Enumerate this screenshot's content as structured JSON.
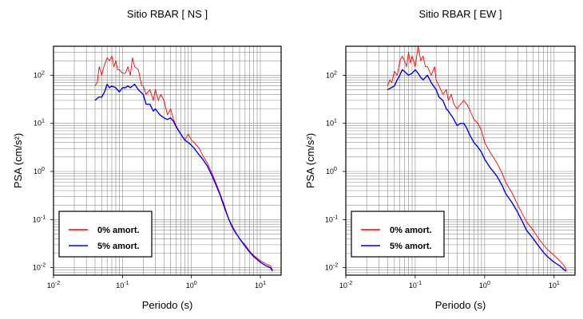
{
  "chart_data": [
    {
      "type": "line",
      "title": "Sitio RBAR [ NS ]",
      "xlabel": "Periodo (s)",
      "ylabel": "PSA (cm/s²)",
      "x_scale": "log",
      "y_scale": "log",
      "xlim": [
        0.01,
        20
      ],
      "ylim": [
        0.007,
        400
      ],
      "grid": true,
      "x_ticks": [
        {
          "value": 0.01,
          "base": "10",
          "exp": "-2"
        },
        {
          "value": 0.1,
          "base": "10",
          "exp": "-1"
        },
        {
          "value": 1,
          "base": "10",
          "exp": "0"
        },
        {
          "value": 10,
          "base": "10",
          "exp": "1"
        }
      ],
      "y_ticks": [
        {
          "value": 0.01,
          "base": "10",
          "exp": "-2"
        },
        {
          "value": 0.1,
          "base": "10",
          "exp": "-1"
        },
        {
          "value": 1,
          "base": "10",
          "exp": "0"
        },
        {
          "value": 10,
          "base": "10",
          "exp": "1"
        },
        {
          "value": 100,
          "base": "10",
          "exp": "2"
        }
      ],
      "legend": {
        "placement": "bottom-left"
      },
      "series": [
        {
          "name": "0% amort.",
          "color": "#ff0000",
          "x": [
            0.04,
            0.043,
            0.046,
            0.05,
            0.053,
            0.056,
            0.06,
            0.065,
            0.07,
            0.075,
            0.08,
            0.085,
            0.09,
            0.1,
            0.11,
            0.12,
            0.13,
            0.14,
            0.15,
            0.17,
            0.19,
            0.2,
            0.22,
            0.25,
            0.28,
            0.3,
            0.33,
            0.36,
            0.4,
            0.45,
            0.5,
            0.55,
            0.6,
            0.7,
            0.8,
            0.9,
            1.0,
            1.1,
            1.3,
            1.5,
            1.7,
            2.0,
            2.3,
            2.6,
            3.0,
            3.5,
            4.0,
            5.0,
            6.0,
            7.0,
            8.0,
            10.0,
            12.0,
            14.0,
            15.0
          ],
          "y": [
            60,
            70,
            150,
            100,
            140,
            180,
            230,
            200,
            250,
            150,
            200,
            130,
            130,
            110,
            110,
            150,
            100,
            230,
            150,
            130,
            60,
            60,
            40,
            50,
            30,
            50,
            30,
            40,
            30,
            15,
            20,
            12,
            9,
            6,
            4.5,
            6,
            4.5,
            4,
            3,
            2,
            1.5,
            0.9,
            0.55,
            0.35,
            0.2,
            0.1,
            0.07,
            0.04,
            0.03,
            0.022,
            0.018,
            0.014,
            0.012,
            0.011,
            0.009
          ]
        },
        {
          "name": "5% amort.",
          "color": "#0000ff",
          "x": [
            0.04,
            0.045,
            0.05,
            0.055,
            0.06,
            0.065,
            0.07,
            0.08,
            0.09,
            0.1,
            0.11,
            0.12,
            0.13,
            0.15,
            0.17,
            0.2,
            0.22,
            0.25,
            0.28,
            0.3,
            0.35,
            0.4,
            0.45,
            0.5,
            0.55,
            0.6,
            0.7,
            0.8,
            0.9,
            1.0,
            1.1,
            1.3,
            1.5,
            1.7,
            2.0,
            2.3,
            2.6,
            3.0,
            3.5,
            4.0,
            5.0,
            6.0,
            7.0,
            8.0,
            10.0,
            12.0,
            14.0,
            15.0
          ],
          "y": [
            30,
            35,
            35,
            45,
            65,
            55,
            60,
            55,
            45,
            55,
            55,
            60,
            55,
            65,
            50,
            40,
            25,
            25,
            18,
            20,
            15,
            13,
            12,
            13,
            11,
            8.5,
            6,
            4.5,
            4,
            3.5,
            3,
            2.2,
            1.7,
            1.3,
            0.8,
            0.5,
            0.33,
            0.18,
            0.1,
            0.065,
            0.04,
            0.028,
            0.021,
            0.017,
            0.013,
            0.011,
            0.01,
            0.0085
          ]
        }
      ]
    },
    {
      "type": "line",
      "title": "Sitio RBAR [ EW ]",
      "xlabel": "Periodo (s)",
      "ylabel": "PSA (cm/s²)",
      "x_scale": "log",
      "y_scale": "log",
      "xlim": [
        0.01,
        20
      ],
      "ylim": [
        0.007,
        400
      ],
      "grid": true,
      "x_ticks": [
        {
          "value": 0.01,
          "base": "10",
          "exp": "-2"
        },
        {
          "value": 0.1,
          "base": "10",
          "exp": "-1"
        },
        {
          "value": 1,
          "base": "10",
          "exp": "0"
        },
        {
          "value": 10,
          "base": "10",
          "exp": "1"
        }
      ],
      "y_ticks": [
        {
          "value": 0.01,
          "base": "10",
          "exp": "-2"
        },
        {
          "value": 0.1,
          "base": "10",
          "exp": "-1"
        },
        {
          "value": 1,
          "base": "10",
          "exp": "0"
        },
        {
          "value": 10,
          "base": "10",
          "exp": "1"
        },
        {
          "value": 100,
          "base": "10",
          "exp": "2"
        }
      ],
      "legend": {
        "placement": "bottom-left"
      },
      "series": [
        {
          "name": "0% amort.",
          "color": "#ff0000",
          "x": [
            0.04,
            0.043,
            0.046,
            0.05,
            0.055,
            0.06,
            0.065,
            0.07,
            0.075,
            0.08,
            0.085,
            0.09,
            0.1,
            0.11,
            0.12,
            0.13,
            0.14,
            0.15,
            0.17,
            0.19,
            0.2,
            0.22,
            0.25,
            0.28,
            0.3,
            0.33,
            0.36,
            0.4,
            0.45,
            0.5,
            0.55,
            0.6,
            0.7,
            0.8,
            0.9,
            1.0,
            1.2,
            1.5,
            1.8,
            2.0,
            2.5,
            3.0,
            3.5,
            4.0,
            5.0,
            6.0,
            7.0,
            8.0,
            10.0,
            12.0,
            14.0,
            15.0
          ],
          "y": [
            60,
            80,
            70,
            120,
            100,
            200,
            250,
            200,
            150,
            300,
            180,
            250,
            150,
            400,
            200,
            250,
            150,
            150,
            100,
            150,
            80,
            60,
            40,
            50,
            30,
            40,
            25,
            20,
            25,
            30,
            25,
            20,
            12,
            10,
            7,
            4,
            2.5,
            1.5,
            0.9,
            0.6,
            0.35,
            0.2,
            0.13,
            0.09,
            0.06,
            0.04,
            0.03,
            0.024,
            0.018,
            0.014,
            0.011,
            0.009
          ]
        },
        {
          "name": "5% amort.",
          "color": "#0000ff",
          "x": [
            0.04,
            0.045,
            0.05,
            0.055,
            0.06,
            0.065,
            0.07,
            0.08,
            0.09,
            0.1,
            0.11,
            0.12,
            0.13,
            0.15,
            0.17,
            0.2,
            0.22,
            0.25,
            0.28,
            0.3,
            0.35,
            0.4,
            0.45,
            0.5,
            0.55,
            0.6,
            0.7,
            0.8,
            0.9,
            1.0,
            1.2,
            1.5,
            1.8,
            2.0,
            2.5,
            3.0,
            3.5,
            4.0,
            5.0,
            6.0,
            7.0,
            8.0,
            10.0,
            12.0,
            14.0,
            15.0
          ],
          "y": [
            50,
            55,
            60,
            80,
            100,
            130,
            120,
            100,
            110,
            130,
            110,
            90,
            80,
            100,
            70,
            50,
            35,
            30,
            20,
            18,
            13,
            9,
            10,
            10,
            8,
            6,
            4,
            3.2,
            2.5,
            1.8,
            1.2,
            0.8,
            0.5,
            0.35,
            0.22,
            0.14,
            0.09,
            0.06,
            0.04,
            0.028,
            0.021,
            0.017,
            0.013,
            0.011,
            0.009,
            0.0085
          ]
        }
      ]
    }
  ]
}
